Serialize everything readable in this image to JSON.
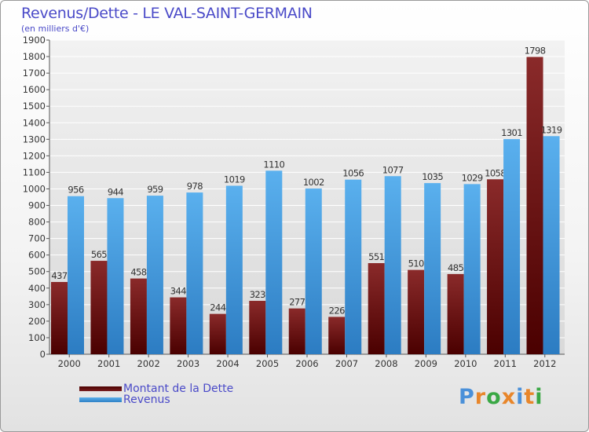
{
  "title": "Revenus/Dette - LE VAL-SAINT-GERMAIN",
  "subtitle": "(en milliers d'€)",
  "chart_data": {
    "type": "bar",
    "categories": [
      "2000",
      "2001",
      "2002",
      "2003",
      "2004",
      "2005",
      "2006",
      "2007",
      "2008",
      "2009",
      "2010",
      "2011",
      "2012"
    ],
    "series": [
      {
        "name": "Montant de la Dette",
        "values": [
          437,
          565,
          458,
          344,
          244,
          323,
          277,
          226,
          551,
          510,
          485,
          1058,
          1798
        ],
        "labels": [
          "437",
          "565",
          "458",
          "344",
          "244",
          "323",
          "277",
          "226",
          "551",
          "510",
          "485",
          "1058",
          "1798"
        ],
        "color": "#6e1717"
      },
      {
        "name": "Revenus",
        "values": [
          956,
          944,
          959,
          978,
          1019,
          1110,
          1002,
          1056,
          1077,
          1035,
          1029,
          1301,
          1319
        ],
        "labels": [
          "956",
          "944",
          "959",
          "978",
          "1019",
          "1110",
          "1002",
          "1056",
          "1077",
          "1035",
          "1029",
          "1301",
          "1319"
        ],
        "color": "#4aa3e6"
      }
    ],
    "ylim": [
      0,
      1900
    ],
    "yticks": [
      "0",
      "100",
      "200",
      "300",
      "400",
      "500",
      "600",
      "700",
      "800",
      "900",
      "1000",
      "1100",
      "1200",
      "1300",
      "1400",
      "1500",
      "1600",
      "1700",
      "1800",
      "1900"
    ],
    "grid": true,
    "legend_position": "bottom-left"
  },
  "legend": {
    "dette": "Montant de la Dette",
    "revenus": "Revenus"
  },
  "brand": {
    "letters": [
      "P",
      "r",
      "o",
      "x",
      "i",
      "t",
      "i"
    ],
    "colors": [
      "#4a90d9",
      "#e8862a",
      "#3aa845",
      "#e8862a",
      "#4a90d9",
      "#e8862a",
      "#3aa845"
    ]
  }
}
